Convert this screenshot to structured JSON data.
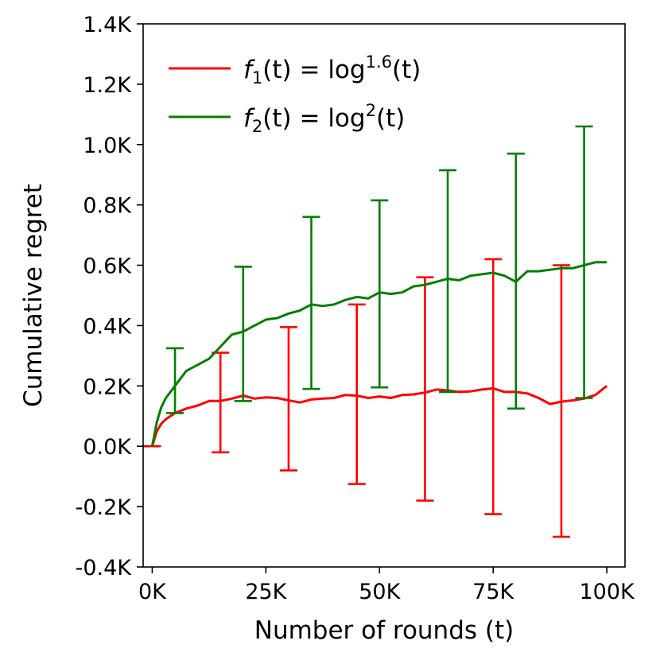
{
  "chart_data": {
    "type": "line",
    "title": "",
    "xlabel": "Number of rounds (t)",
    "ylabel": "Cumulative regret",
    "xlim": [
      -2000,
      104000
    ],
    "ylim": [
      -400,
      1400
    ],
    "x_ticks": [
      0,
      25000,
      50000,
      75000,
      100000
    ],
    "x_tick_labels": [
      "0K",
      "25K",
      "50K",
      "75K",
      "100K"
    ],
    "y_ticks": [
      -400,
      -200,
      0,
      200,
      400,
      600,
      800,
      1000,
      1200,
      1400
    ],
    "y_tick_labels": [
      "-0.4K",
      "-0.2K",
      "0.0K",
      "0.2K",
      "0.4K",
      "0.6K",
      "0.8K",
      "1.0K",
      "1.2K",
      "1.4K"
    ],
    "legend_position": "top-left",
    "series": [
      {
        "name": "f1",
        "legend_label": {
          "func": "f",
          "sub": "1",
          "mid": "(t) = log",
          "sup": "1.6",
          "end": "(t)"
        },
        "color": "#ff0000",
        "x": [
          0,
          1000,
          2000,
          3000,
          5000,
          7500,
          10000,
          12500,
          15000,
          17500,
          20000,
          22500,
          25000,
          27500,
          30000,
          32500,
          35000,
          37500,
          40000,
          42500,
          45000,
          47500,
          50000,
          52500,
          55000,
          57500,
          60000,
          62500,
          65000,
          67500,
          70000,
          72500,
          75000,
          77500,
          80000,
          82500,
          85000,
          87500,
          90000,
          92500,
          95000,
          97500,
          100000
        ],
        "values": [
          0,
          50,
          75,
          90,
          110,
          125,
          135,
          150,
          150,
          158,
          168,
          158,
          162,
          160,
          152,
          145,
          155,
          158,
          160,
          170,
          168,
          160,
          165,
          160,
          170,
          172,
          178,
          188,
          185,
          180,
          182,
          188,
          192,
          180,
          180,
          175,
          160,
          140,
          148,
          152,
          158,
          170,
          200
        ],
        "error_x": [
          0,
          15000,
          30000,
          45000,
          60000,
          75000,
          90000
        ],
        "error_low": [
          0,
          -20,
          -80,
          -125,
          -180,
          -225,
          -300
        ],
        "error_high": [
          0,
          310,
          395,
          470,
          560,
          620,
          600
        ]
      },
      {
        "name": "f2",
        "legend_label": {
          "func": "f",
          "sub": "2",
          "mid": "(t) = log",
          "sup": "2",
          "end": "(t)"
        },
        "color": "#007f00",
        "x": [
          0,
          1000,
          2000,
          3000,
          5000,
          7500,
          10000,
          12500,
          15000,
          17500,
          20000,
          22500,
          25000,
          27500,
          30000,
          32500,
          35000,
          37500,
          40000,
          42500,
          45000,
          47500,
          50000,
          52500,
          55000,
          57500,
          60000,
          62500,
          65000,
          67500,
          70000,
          72500,
          75000,
          77500,
          80000,
          82500,
          85000,
          87500,
          90000,
          92500,
          95000,
          97500,
          100000
        ],
        "values": [
          0,
          80,
          130,
          160,
          200,
          250,
          270,
          290,
          330,
          370,
          380,
          400,
          420,
          425,
          440,
          450,
          470,
          465,
          470,
          485,
          495,
          490,
          510,
          505,
          510,
          530,
          535,
          545,
          555,
          550,
          565,
          570,
          575,
          565,
          545,
          580,
          580,
          585,
          590,
          590,
          600,
          610,
          610
        ],
        "error_x": [
          5000,
          20000,
          35000,
          50000,
          65000,
          80000,
          95000
        ],
        "error_low": [
          110,
          150,
          190,
          195,
          180,
          125,
          160
        ],
        "error_high": [
          325,
          595,
          760,
          815,
          915,
          970,
          1060
        ]
      }
    ]
  }
}
